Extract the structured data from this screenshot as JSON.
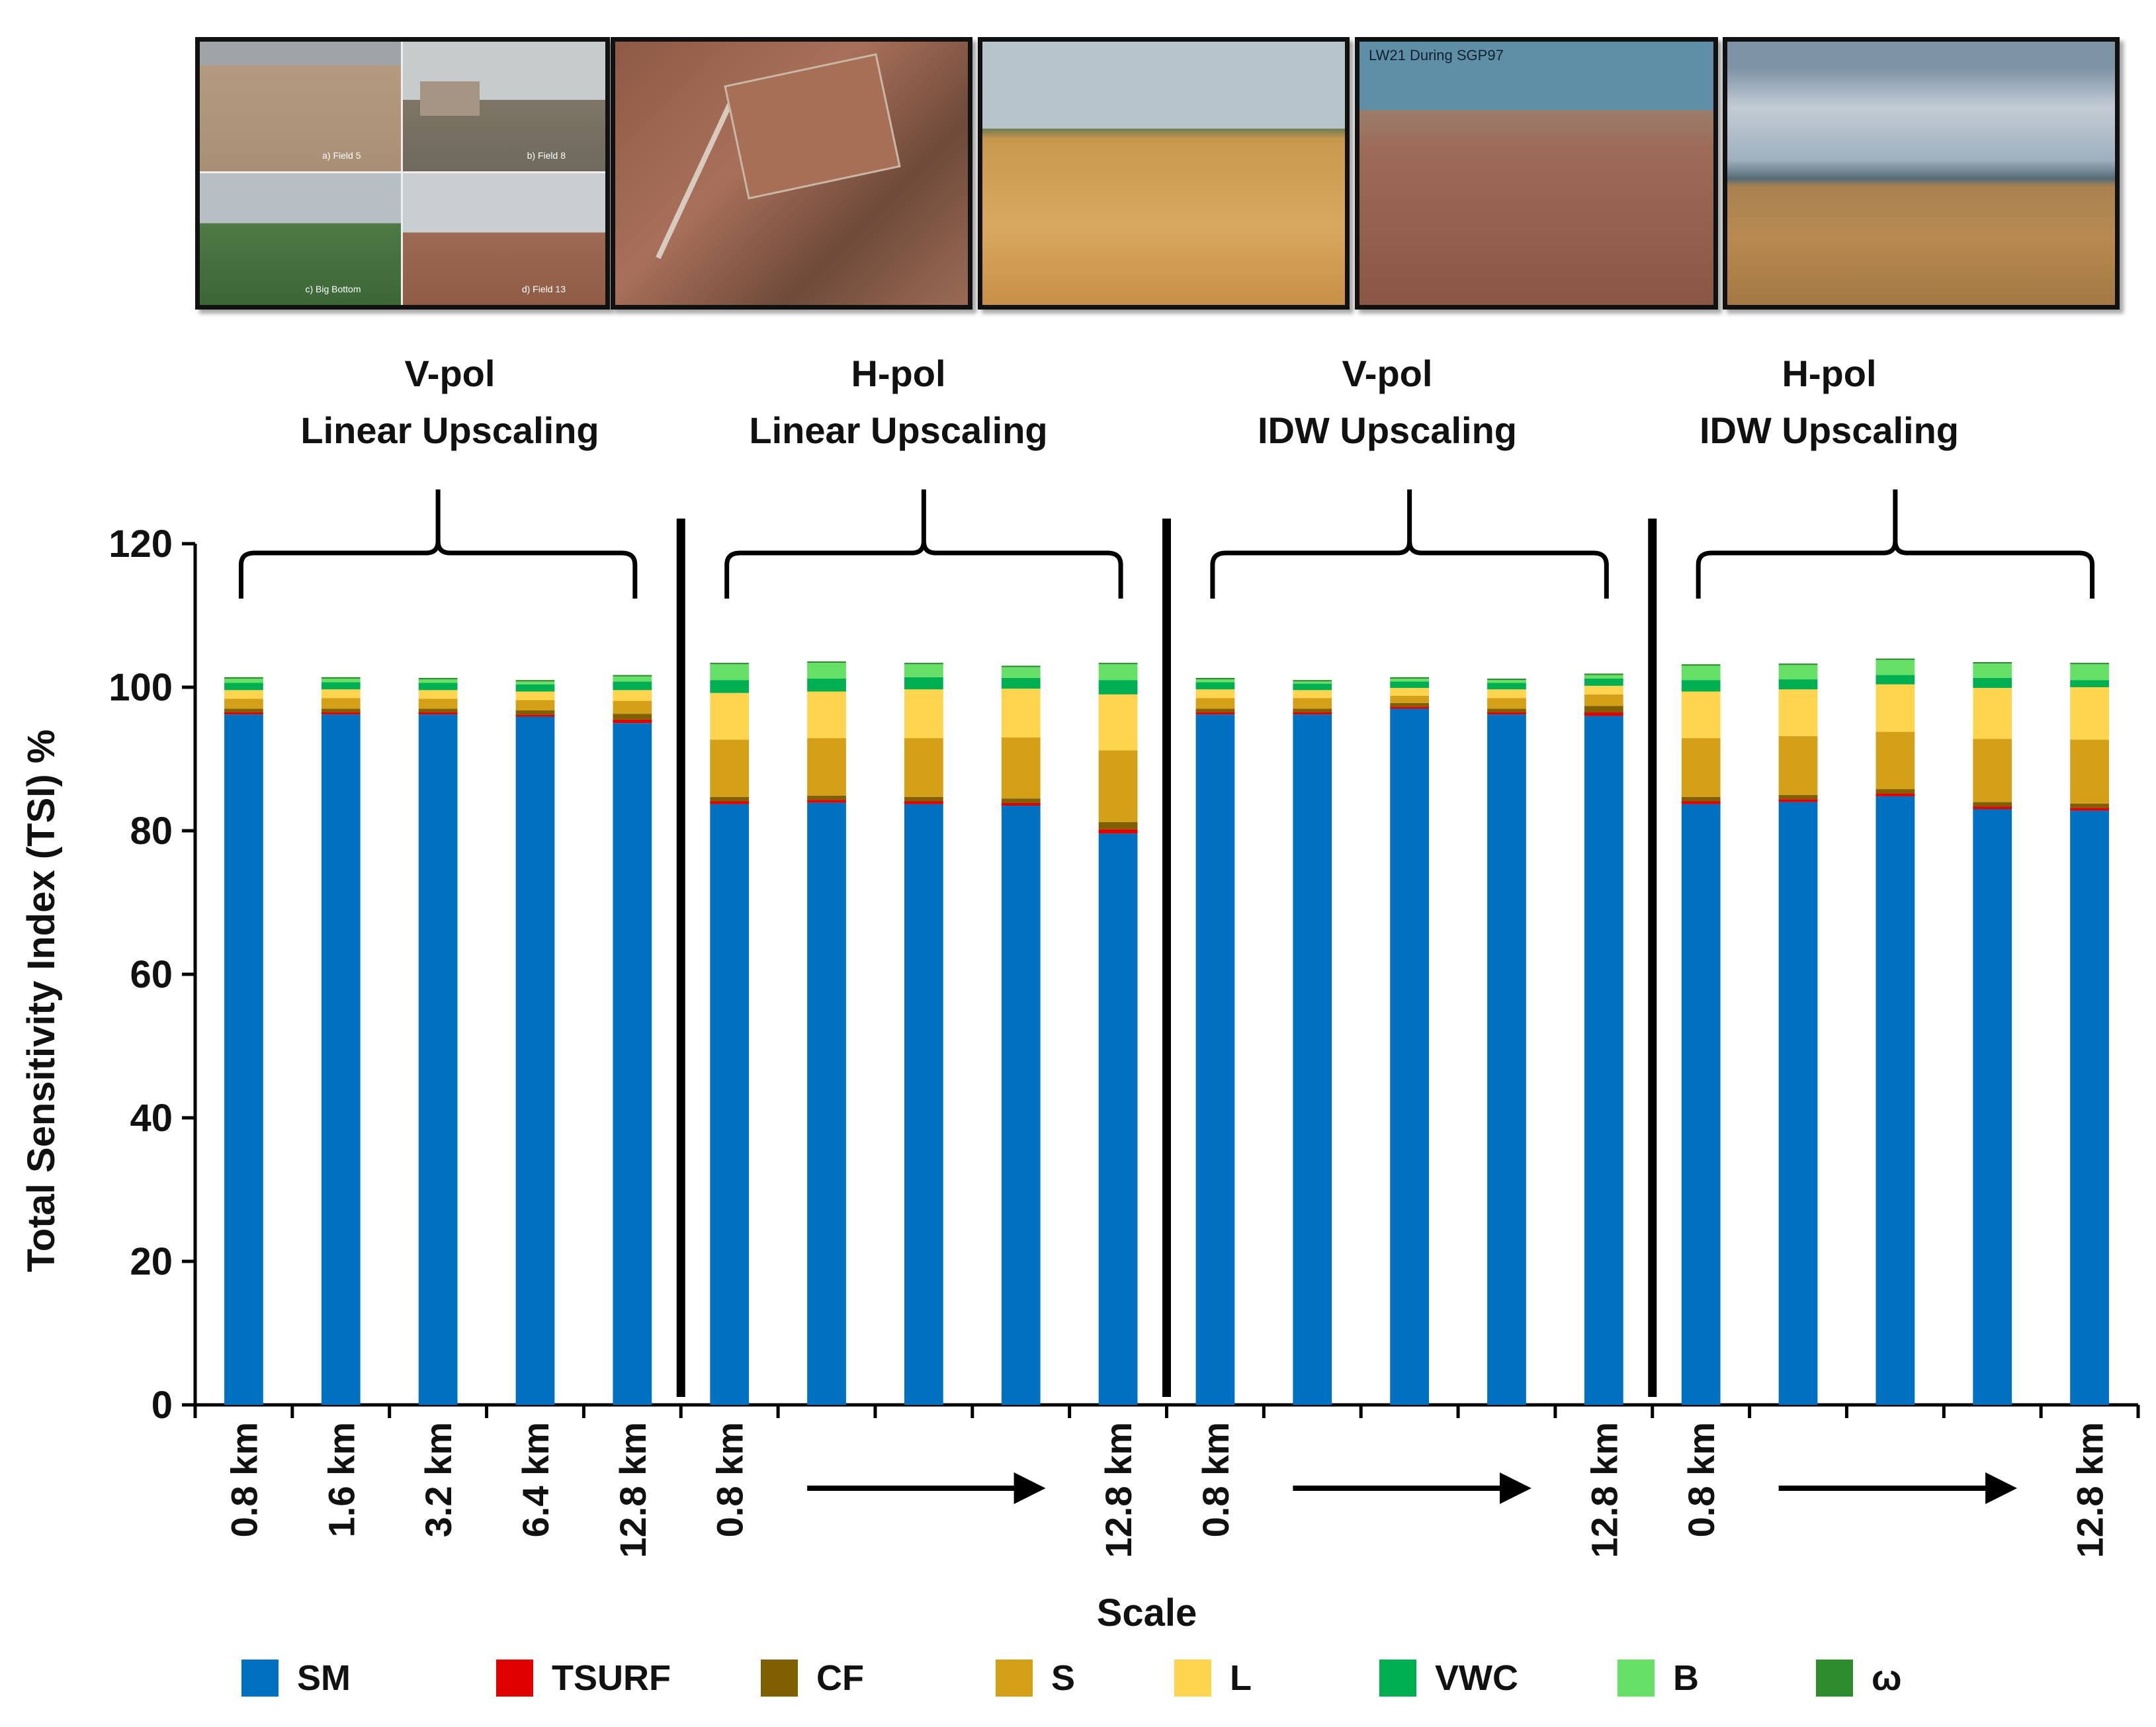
{
  "photos": {
    "p1_captions": [
      "a) Field 5",
      "b) Field 8",
      "c) Big Bottom",
      "d) Field 13"
    ],
    "p4_caption": "LW21 During SGP97"
  },
  "groups": [
    {
      "title_line1": "V-pol",
      "title_line2": "Linear Upscaling"
    },
    {
      "title_line1": "H-pol",
      "title_line2": "Linear Upscaling"
    },
    {
      "title_line1": "V-pol",
      "title_line2": "IDW Upscaling"
    },
    {
      "title_line1": "H-pol",
      "title_line2": "IDW Upscaling"
    }
  ],
  "chart_data": {
    "type": "bar",
    "stacked": true,
    "ylabel": "Total Sensitivity Index (TSI) %",
    "xlabel": "Scale",
    "ylim": [
      0,
      120
    ],
    "yticks": [
      0,
      20,
      40,
      60,
      80,
      100,
      120
    ],
    "categories": [
      "0.8 km",
      "1.6 km",
      "3.2 km",
      "6.4 km",
      "12.8 km",
      "0.8 km",
      "",
      "",
      "",
      "12.8 km",
      "0.8 km",
      "",
      "",
      "",
      "12.8 km",
      "0.8 km",
      "",
      "",
      "",
      "12.8 km"
    ],
    "series": [
      {
        "name": "SM",
        "color": "#0070C0",
        "values": [
          96.2,
          96.2,
          96.2,
          95.9,
          95.0,
          83.7,
          83.9,
          83.7,
          83.5,
          79.6,
          96.2,
          96.2,
          97.0,
          96.2,
          96.0,
          83.7,
          84.0,
          84.8,
          83.0,
          82.8
        ]
      },
      {
        "name": "TSURF",
        "color": "#E00000",
        "values": [
          0.3,
          0.3,
          0.3,
          0.3,
          0.5,
          0.4,
          0.4,
          0.4,
          0.4,
          0.6,
          0.3,
          0.3,
          0.3,
          0.3,
          0.5,
          0.4,
          0.4,
          0.4,
          0.4,
          0.4
        ]
      },
      {
        "name": "CF",
        "color": "#7F5F00",
        "values": [
          0.5,
          0.5,
          0.5,
          0.6,
          0.8,
          0.6,
          0.6,
          0.6,
          0.6,
          1.0,
          0.5,
          0.5,
          0.5,
          0.5,
          0.9,
          0.6,
          0.6,
          0.6,
          0.6,
          0.6
        ]
      },
      {
        "name": "S",
        "color": "#D4A017",
        "values": [
          1.4,
          1.5,
          1.4,
          1.4,
          1.8,
          8.0,
          8.0,
          8.2,
          8.5,
          10.0,
          1.5,
          1.5,
          1.0,
          1.5,
          1.6,
          8.2,
          8.2,
          8.0,
          8.8,
          8.9
        ]
      },
      {
        "name": "L",
        "color": "#FFD54F",
        "values": [
          1.2,
          1.2,
          1.2,
          1.2,
          1.5,
          6.5,
          6.5,
          6.8,
          6.8,
          7.8,
          1.2,
          1.1,
          1.1,
          1.2,
          1.2,
          6.5,
          6.5,
          6.6,
          7.1,
          7.3
        ]
      },
      {
        "name": "VWC",
        "color": "#00B050",
        "values": [
          1.0,
          1.0,
          1.0,
          1.0,
          1.2,
          1.8,
          1.8,
          1.7,
          1.5,
          2.0,
          1.0,
          0.9,
          0.9,
          0.9,
          1.0,
          1.6,
          1.4,
          1.3,
          1.4,
          1.0
        ]
      },
      {
        "name": "B",
        "color": "#66E066",
        "values": [
          0.6,
          0.5,
          0.5,
          0.4,
          0.7,
          2.2,
          2.2,
          1.8,
          1.5,
          2.2,
          0.4,
          0.3,
          0.4,
          0.4,
          0.5,
          2.0,
          2.0,
          2.1,
          2.0,
          2.2
        ]
      },
      {
        "name": "ω",
        "color": "#2E8B2E",
        "values": [
          0.2,
          0.2,
          0.2,
          0.2,
          0.2,
          0.2,
          0.2,
          0.2,
          0.2,
          0.2,
          0.2,
          0.2,
          0.2,
          0.2,
          0.2,
          0.2,
          0.2,
          0.2,
          0.2,
          0.2
        ]
      }
    ]
  }
}
